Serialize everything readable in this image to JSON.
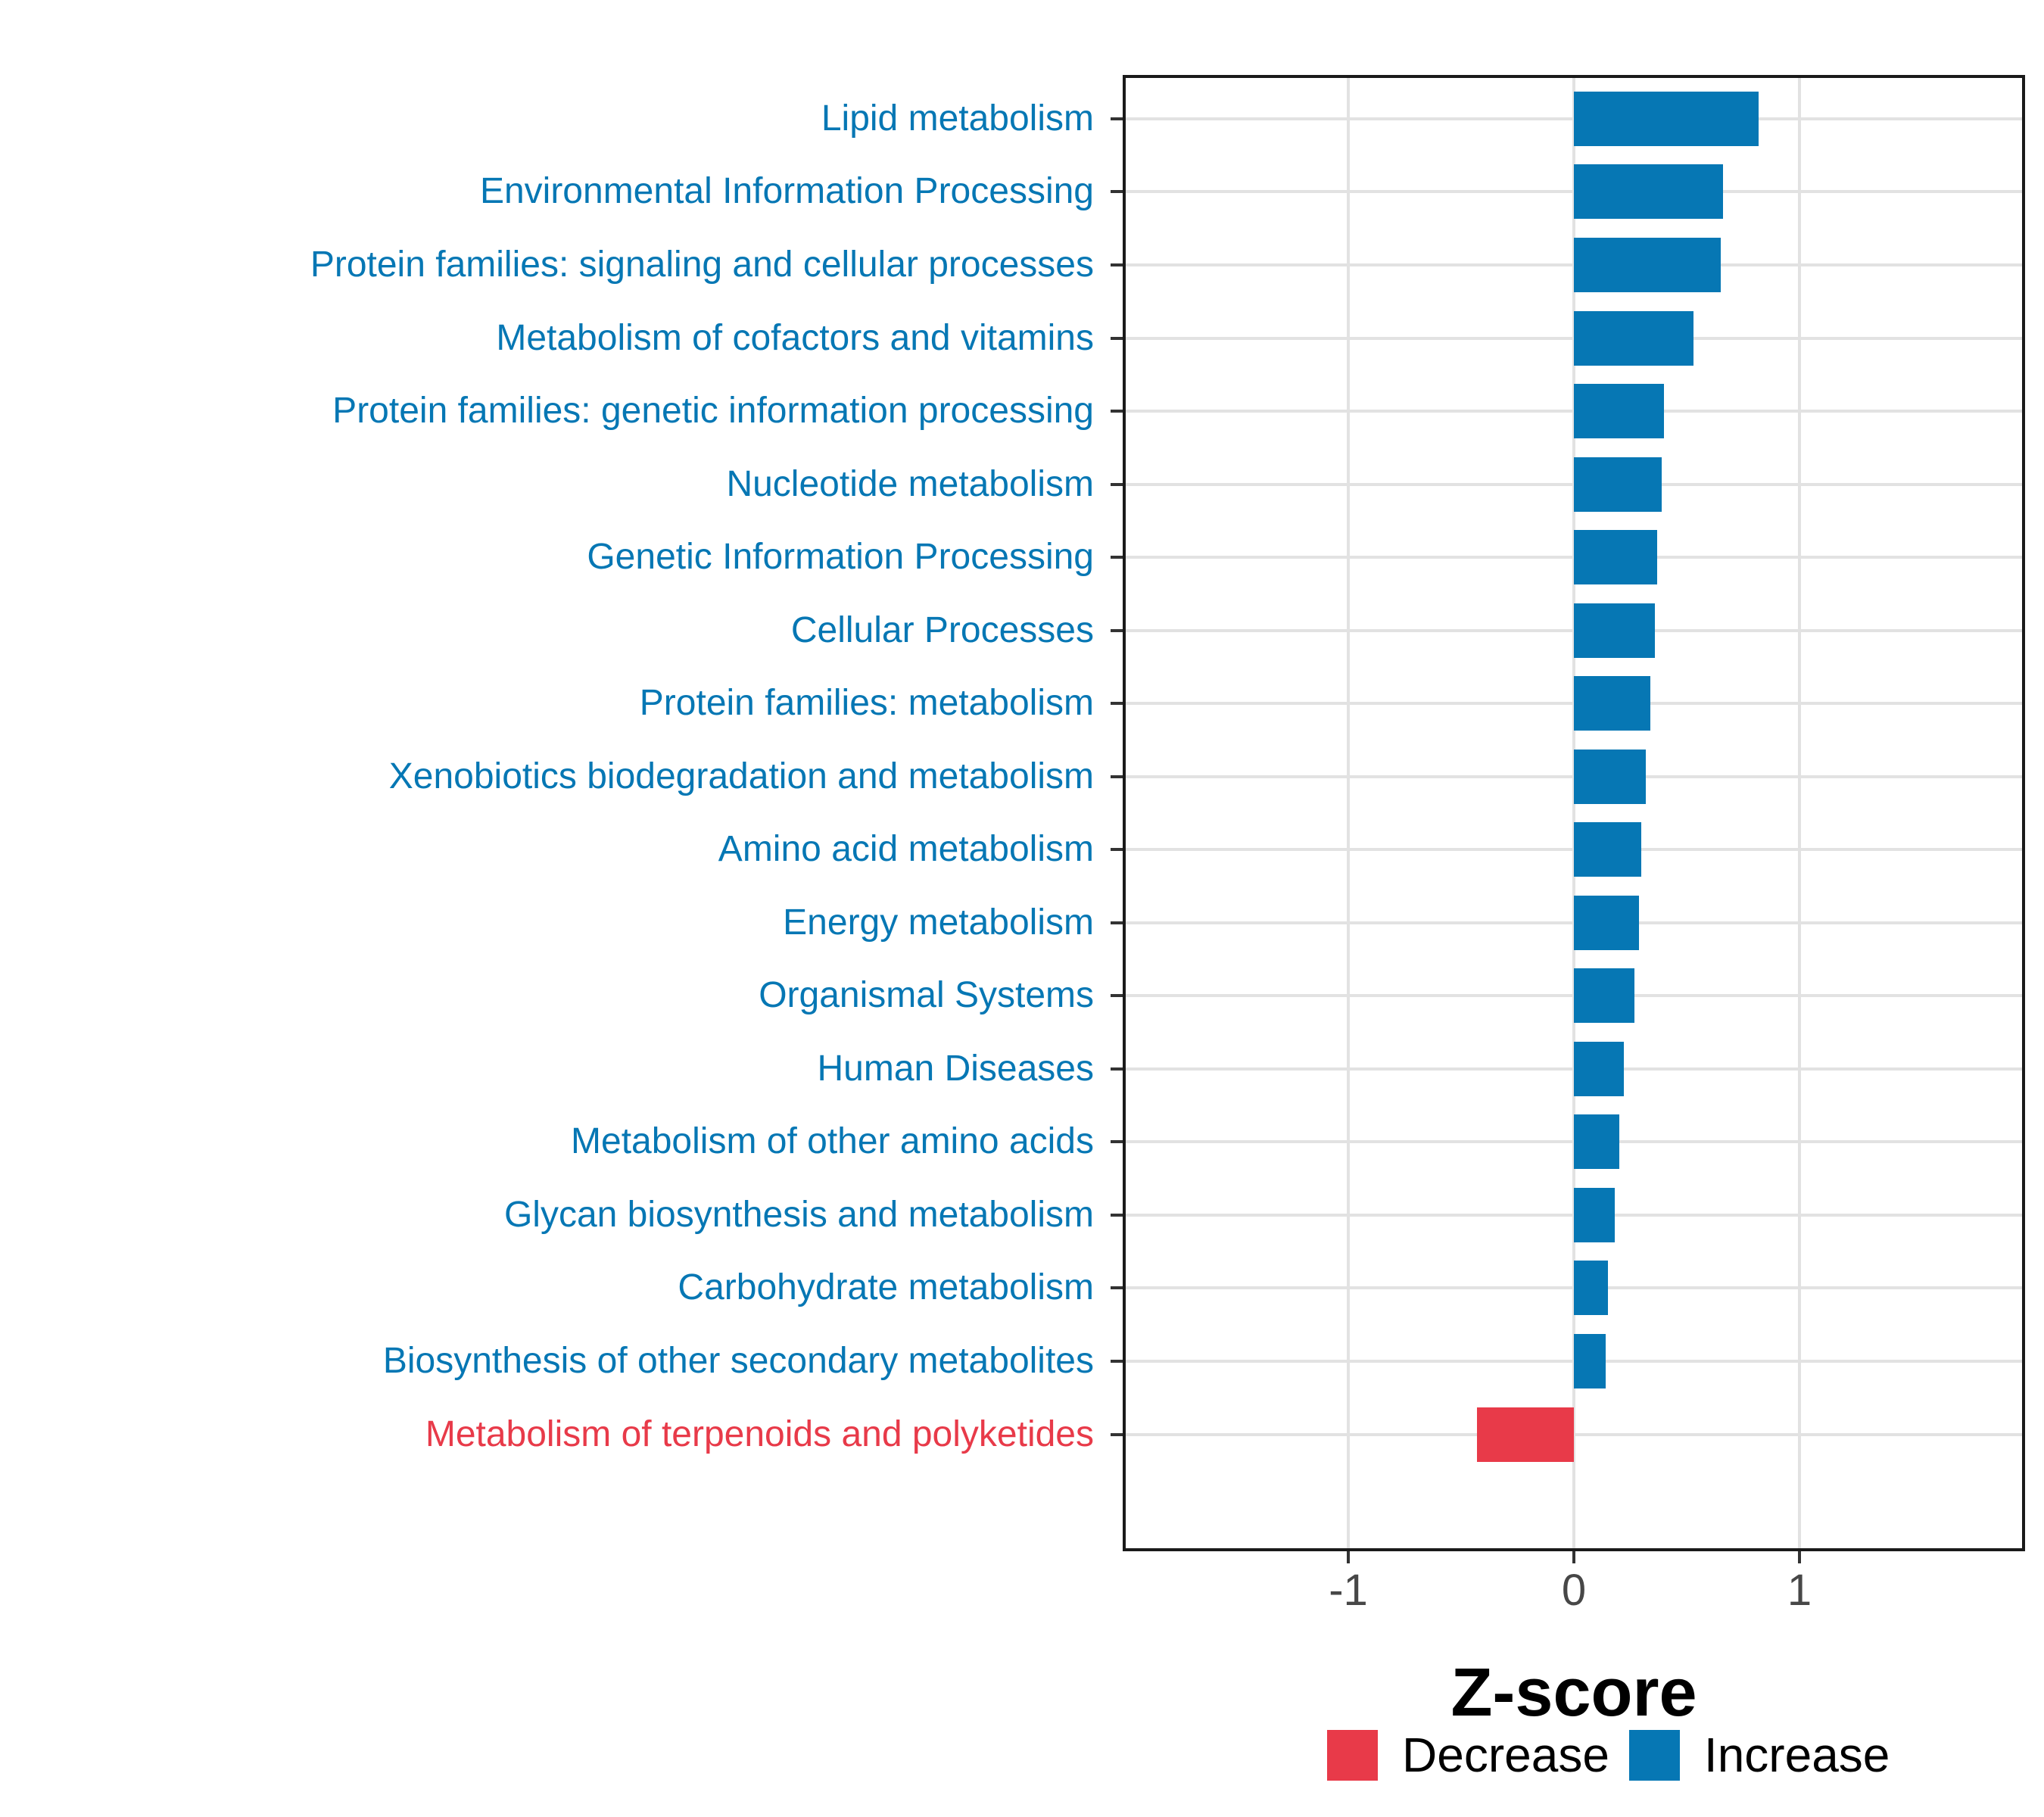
{
  "chart_data": {
    "type": "bar",
    "orientation": "horizontal",
    "title": "",
    "xlabel": "Z-score",
    "ylabel": "",
    "xlim": [
      -2,
      2
    ],
    "xticks": [
      {
        "value": -1,
        "label": "-1"
      },
      {
        "value": 0,
        "label": "0"
      },
      {
        "value": 1,
        "label": "1"
      }
    ],
    "grid": {
      "vertical_at": [
        -1,
        0,
        1
      ],
      "horizontal": "one line per category",
      "color": "#E2E2E2"
    },
    "colors": {
      "increase": "#0677B4",
      "decrease": "#E83A49"
    },
    "axis_style": {
      "tick_color": "#333333",
      "tick_label_color": "#474747",
      "panel_border_color": "#1A1A1A"
    },
    "bars": [
      {
        "category": "Lipid metabolism",
        "value": 0.82,
        "group": "increase"
      },
      {
        "category": "Environmental Information Processing",
        "value": 0.66,
        "group": "increase"
      },
      {
        "category": "Protein families: signaling and cellular processes",
        "value": 0.65,
        "group": "increase"
      },
      {
        "category": "Metabolism of cofactors and vitamins",
        "value": 0.53,
        "group": "increase"
      },
      {
        "category": "Protein families: genetic information processing",
        "value": 0.4,
        "group": "increase"
      },
      {
        "category": "Nucleotide metabolism",
        "value": 0.39,
        "group": "increase"
      },
      {
        "category": "Genetic Information Processing",
        "value": 0.37,
        "group": "increase"
      },
      {
        "category": "Cellular Processes",
        "value": 0.36,
        "group": "increase"
      },
      {
        "category": "Protein families: metabolism",
        "value": 0.34,
        "group": "increase"
      },
      {
        "category": "Xenobiotics biodegradation and metabolism",
        "value": 0.32,
        "group": "increase"
      },
      {
        "category": "Amino acid metabolism",
        "value": 0.3,
        "group": "increase"
      },
      {
        "category": "Energy metabolism",
        "value": 0.29,
        "group": "increase"
      },
      {
        "category": "Organismal Systems",
        "value": 0.27,
        "group": "increase"
      },
      {
        "category": "Human Diseases",
        "value": 0.22,
        "group": "increase"
      },
      {
        "category": "Metabolism of other amino acids",
        "value": 0.2,
        "group": "increase"
      },
      {
        "category": "Glycan biosynthesis and metabolism",
        "value": 0.18,
        "group": "increase"
      },
      {
        "category": "Carbohydrate metabolism",
        "value": 0.15,
        "group": "increase"
      },
      {
        "category": "Biosynthesis of other secondary metabolites",
        "value": 0.14,
        "group": "increase"
      },
      {
        "category": "Metabolism of terpenoids and polyketides",
        "value": -0.43,
        "group": "decrease"
      }
    ],
    "legend": {
      "position": "bottom",
      "items": [
        {
          "label": "Decrease",
          "key": "decrease"
        },
        {
          "label": "Increase",
          "key": "increase"
        }
      ]
    }
  }
}
